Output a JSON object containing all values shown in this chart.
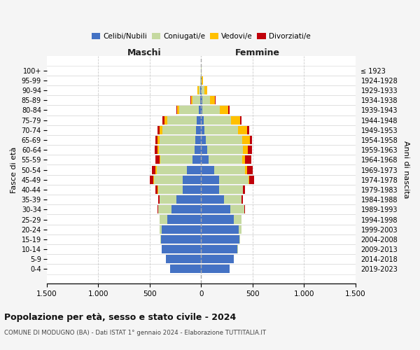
{
  "age_groups": [
    "0-4",
    "5-9",
    "10-14",
    "15-19",
    "20-24",
    "25-29",
    "30-34",
    "35-39",
    "40-44",
    "45-49",
    "50-54",
    "55-59",
    "60-64",
    "65-69",
    "70-74",
    "75-79",
    "80-84",
    "85-89",
    "90-94",
    "95-99",
    "100+"
  ],
  "birth_years": [
    "2019-2023",
    "2014-2018",
    "2009-2013",
    "2004-2008",
    "1999-2003",
    "1994-1998",
    "1989-1993",
    "1984-1988",
    "1979-1983",
    "1974-1978",
    "1969-1973",
    "1964-1968",
    "1959-1963",
    "1954-1958",
    "1949-1953",
    "1944-1948",
    "1939-1943",
    "1934-1938",
    "1929-1933",
    "1924-1928",
    "≤ 1923"
  ],
  "male": {
    "celibi": [
      300,
      340,
      380,
      390,
      380,
      330,
      290,
      240,
      180,
      175,
      135,
      80,
      65,
      55,
      50,
      40,
      20,
      10,
      5,
      3,
      2
    ],
    "coniugati": [
      0,
      0,
      5,
      5,
      20,
      75,
      125,
      165,
      235,
      285,
      295,
      315,
      345,
      345,
      325,
      285,
      195,
      70,
      20,
      5,
      2
    ],
    "vedovi": [
      0,
      0,
      0,
      0,
      0,
      0,
      0,
      0,
      5,
      5,
      10,
      5,
      10,
      20,
      25,
      30,
      20,
      15,
      10,
      2,
      0
    ],
    "divorziati": [
      0,
      0,
      0,
      0,
      0,
      0,
      5,
      10,
      20,
      30,
      40,
      40,
      30,
      25,
      25,
      20,
      5,
      5,
      0,
      0,
      0
    ]
  },
  "female": {
    "nubili": [
      275,
      315,
      355,
      375,
      365,
      315,
      285,
      225,
      175,
      175,
      130,
      75,
      60,
      45,
      35,
      25,
      15,
      10,
      5,
      3,
      2
    ],
    "coniugate": [
      0,
      0,
      5,
      5,
      25,
      75,
      135,
      165,
      230,
      285,
      295,
      325,
      345,
      355,
      325,
      265,
      165,
      75,
      25,
      5,
      2
    ],
    "vedove": [
      0,
      0,
      0,
      0,
      0,
      0,
      0,
      5,
      5,
      10,
      20,
      30,
      50,
      75,
      90,
      90,
      85,
      50,
      30,
      10,
      3
    ],
    "divorziate": [
      0,
      0,
      0,
      0,
      0,
      0,
      5,
      10,
      20,
      45,
      55,
      55,
      40,
      20,
      20,
      15,
      10,
      5,
      0,
      0,
      0
    ]
  },
  "colors": {
    "celibi": "#4472c4",
    "coniugati": "#c5d9a0",
    "vedovi": "#ffc000",
    "divorziati": "#c0000a"
  },
  "xlim": 1500,
  "title": "Popolazione per età, sesso e stato civile - 2024",
  "subtitle": "COMUNE DI MODUGNO (BA) - Dati ISTAT 1° gennaio 2024 - Elaborazione TUTTITALIA.IT",
  "xlabel_left": "Maschi",
  "xlabel_right": "Femmine",
  "ylabel": "Fasce di età",
  "ylabel_right": "Anni di nascita",
  "background_color": "#f5f5f5",
  "plot_background": "#ffffff",
  "xticks": [
    -1500,
    -1000,
    -500,
    0,
    500,
    1000,
    1500
  ],
  "xtick_labels": [
    "1.500",
    "1.000",
    "500",
    "0",
    "500",
    "1.000",
    "1.500"
  ]
}
